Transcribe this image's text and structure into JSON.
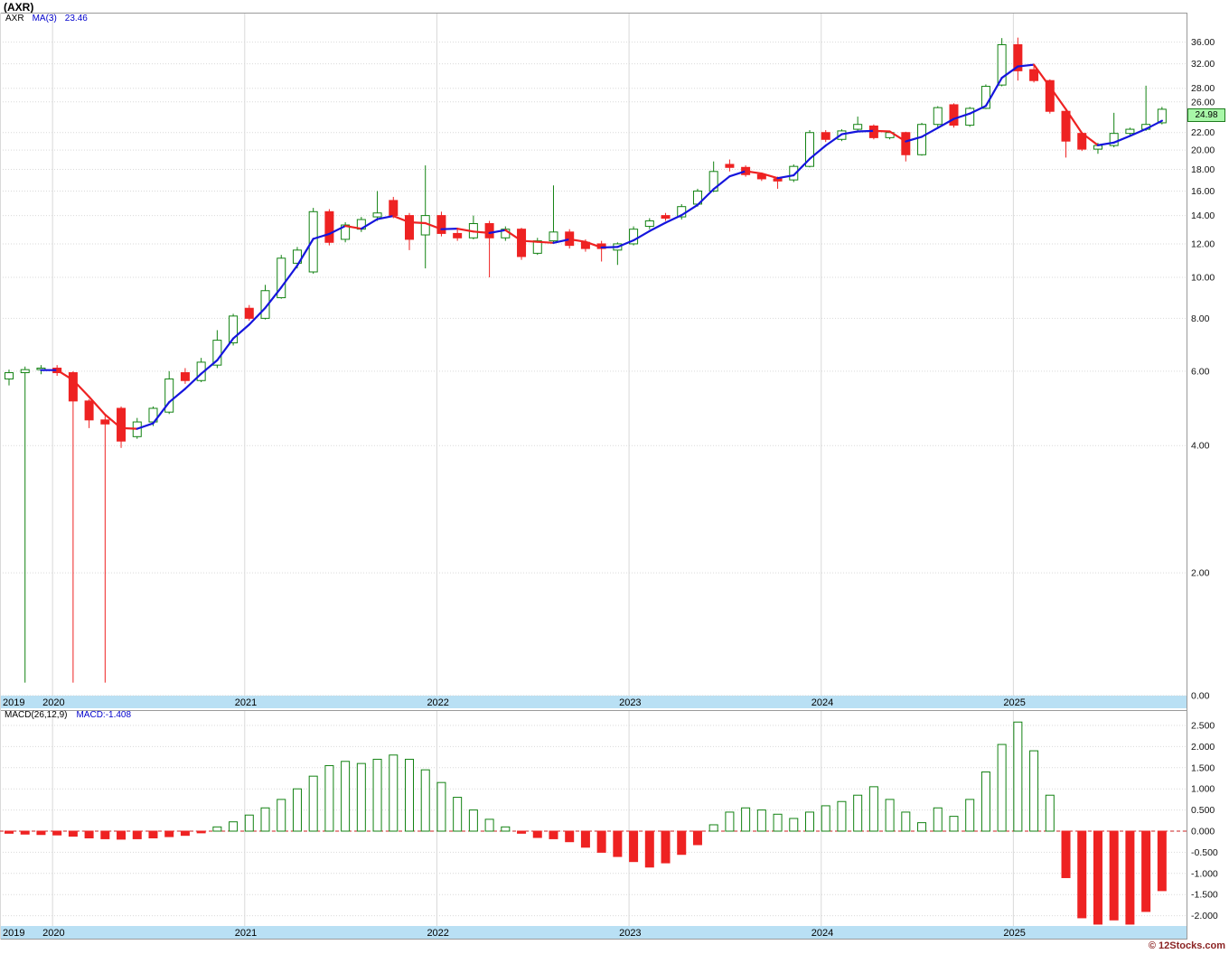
{
  "title": "(AXR)",
  "legend": {
    "symbol": "AXR",
    "ma_label": "MA(3)",
    "ma_value": "23.46"
  },
  "macd_legend": {
    "label": "MACD(26,12,9)",
    "value": "MACD:-1.408"
  },
  "price_badge": "24.98",
  "watermark": "© 12Stocks.com",
  "colors": {
    "up": "#128212",
    "down": "#ee2222",
    "ma_up": "#1515dd",
    "ma_down": "#ee2222",
    "grid": "#d9d9d9",
    "frame": "#9a9a9a",
    "strip": "#b9e0f4",
    "zero_line": "#cc2222",
    "axis_text": "#111111",
    "badge_bg": "#a8f7a8",
    "badge_border": "#1e7b1e",
    "legend_blue": "#0000cc",
    "watermark_color": "#8b2323"
  },
  "chart_data": {
    "type": "candlestick",
    "symbol": "AXR",
    "frequency": "monthly",
    "scale": "log",
    "ma_period": 3,
    "ma_last_value": 23.46,
    "last_close": 24.98,
    "macd_last_value": -1.408,
    "price_axis": {
      "ticks": [
        36,
        32,
        28,
        26,
        22,
        20,
        18,
        16,
        14,
        12,
        10,
        8,
        6,
        4,
        2,
        0
      ]
    },
    "macd_axis": {
      "ticks": [
        2.5,
        2.0,
        1.5,
        1.0,
        0.5,
        0.0,
        -0.5,
        -1.0,
        -1.5,
        -2.0
      ]
    },
    "years": [
      {
        "label": "2019",
        "i": 0
      },
      {
        "label": "2020",
        "i": 3
      },
      {
        "label": "2021",
        "i": 15
      },
      {
        "label": "2022",
        "i": 27
      },
      {
        "label": "2023",
        "i": 39
      },
      {
        "label": "2024",
        "i": 51
      },
      {
        "label": "2025",
        "i": 63
      }
    ],
    "candles": [
      [
        5.75,
        6.05,
        5.55,
        5.95
      ],
      [
        5.95,
        6.15,
        1.1,
        6.05
      ],
      [
        6.05,
        6.2,
        5.9,
        6.1
      ],
      [
        6.1,
        6.2,
        5.85,
        5.95
      ],
      [
        5.95,
        6.0,
        1.1,
        5.1
      ],
      [
        5.1,
        5.15,
        4.4,
        4.6
      ],
      [
        4.6,
        4.7,
        1.1,
        4.5
      ],
      [
        4.9,
        4.95,
        3.95,
        4.1
      ],
      [
        4.2,
        4.65,
        4.15,
        4.55
      ],
      [
        4.55,
        4.95,
        4.45,
        4.9
      ],
      [
        4.8,
        6.0,
        4.75,
        5.75
      ],
      [
        5.95,
        6.1,
        5.6,
        5.7
      ],
      [
        5.7,
        6.45,
        5.65,
        6.3
      ],
      [
        6.2,
        7.5,
        6.1,
        7.1
      ],
      [
        7.0,
        8.2,
        6.9,
        8.1
      ],
      [
        8.45,
        8.6,
        7.9,
        8.0
      ],
      [
        8.0,
        9.6,
        7.95,
        9.3
      ],
      [
        8.95,
        11.3,
        8.9,
        11.1
      ],
      [
        10.8,
        11.8,
        10.5,
        11.6
      ],
      [
        10.3,
        14.6,
        10.2,
        14.3
      ],
      [
        14.3,
        14.5,
        11.9,
        12.1
      ],
      [
        12.3,
        13.5,
        12.1,
        13.3
      ],
      [
        13.0,
        13.9,
        12.8,
        13.7
      ],
      [
        13.9,
        16.0,
        13.6,
        14.2
      ],
      [
        15.2,
        15.5,
        13.8,
        14.0
      ],
      [
        14.0,
        14.2,
        11.6,
        12.3
      ],
      [
        12.6,
        18.4,
        10.5,
        14.0
      ],
      [
        14.0,
        14.3,
        12.5,
        12.7
      ],
      [
        12.7,
        13.0,
        12.2,
        12.4
      ],
      [
        12.4,
        14.0,
        12.3,
        13.4
      ],
      [
        13.4,
        13.6,
        10.0,
        12.4
      ],
      [
        12.4,
        13.2,
        12.2,
        13.0
      ],
      [
        13.0,
        13.1,
        11.0,
        11.2
      ],
      [
        11.4,
        12.4,
        11.3,
        12.2
      ],
      [
        12.2,
        16.5,
        12.1,
        12.8
      ],
      [
        12.8,
        13.0,
        11.7,
        11.9
      ],
      [
        12.1,
        12.3,
        11.5,
        11.7
      ],
      [
        12.0,
        12.2,
        10.9,
        11.7
      ],
      [
        11.6,
        12.1,
        10.7,
        12.0
      ],
      [
        12.0,
        13.2,
        11.9,
        13.0
      ],
      [
        13.2,
        13.8,
        13.0,
        13.6
      ],
      [
        14.0,
        14.2,
        13.6,
        13.8
      ],
      [
        13.9,
        14.9,
        13.7,
        14.7
      ],
      [
        14.9,
        16.2,
        14.7,
        16.0
      ],
      [
        16.0,
        18.8,
        15.9,
        17.8
      ],
      [
        18.5,
        19.0,
        17.8,
        18.2
      ],
      [
        18.2,
        18.4,
        17.3,
        17.5
      ],
      [
        17.5,
        17.7,
        16.9,
        17.1
      ],
      [
        17.1,
        17.3,
        16.2,
        16.9
      ],
      [
        17.0,
        18.5,
        16.8,
        18.3
      ],
      [
        18.3,
        22.3,
        18.2,
        22.0
      ],
      [
        22.0,
        22.3,
        20.9,
        21.2
      ],
      [
        21.2,
        22.4,
        21.0,
        22.2
      ],
      [
        22.4,
        24.0,
        22.2,
        23.0
      ],
      [
        22.8,
        23.0,
        21.2,
        21.4
      ],
      [
        21.4,
        22.2,
        21.2,
        22.0
      ],
      [
        22.0,
        22.1,
        18.8,
        19.5
      ],
      [
        19.5,
        23.2,
        19.4,
        23.0
      ],
      [
        23.0,
        25.4,
        22.6,
        25.2
      ],
      [
        25.6,
        25.8,
        22.6,
        22.9
      ],
      [
        22.9,
        25.3,
        22.7,
        25.1
      ],
      [
        25.1,
        28.6,
        25.0,
        28.3
      ],
      [
        28.5,
        36.8,
        28.3,
        35.5
      ],
      [
        35.5,
        36.9,
        29.2,
        30.8
      ],
      [
        31.0,
        31.6,
        28.9,
        29.2
      ],
      [
        29.2,
        29.4,
        24.4,
        24.7
      ],
      [
        24.7,
        24.9,
        19.2,
        21.0
      ],
      [
        21.9,
        22.0,
        19.9,
        20.1
      ],
      [
        20.1,
        20.8,
        19.6,
        20.5
      ],
      [
        20.5,
        24.5,
        20.3,
        21.9
      ],
      [
        21.9,
        22.6,
        21.5,
        22.4
      ],
      [
        22.4,
        28.4,
        22.2,
        23.0
      ],
      [
        23.2,
        25.3,
        23.0,
        24.98
      ]
    ],
    "macd_histogram": [
      -0.05,
      -0.07,
      -0.08,
      -0.09,
      -0.12,
      -0.16,
      -0.18,
      -0.19,
      -0.18,
      -0.16,
      -0.13,
      -0.1,
      -0.04,
      0.1,
      0.22,
      0.38,
      0.55,
      0.75,
      1.0,
      1.3,
      1.55,
      1.65,
      1.6,
      1.7,
      1.8,
      1.7,
      1.45,
      1.15,
      0.8,
      0.5,
      0.28,
      0.1,
      -0.05,
      -0.15,
      -0.18,
      -0.25,
      -0.38,
      -0.5,
      -0.6,
      -0.72,
      -0.85,
      -0.75,
      -0.55,
      -0.32,
      0.15,
      0.45,
      0.55,
      0.5,
      0.4,
      0.3,
      0.45,
      0.6,
      0.7,
      0.85,
      1.05,
      0.75,
      0.45,
      0.2,
      0.55,
      0.35,
      0.75,
      1.4,
      2.05,
      2.58,
      1.9,
      0.85,
      -1.1,
      -2.05,
      -2.2,
      -2.1,
      -2.2,
      -1.9,
      -1.408
    ]
  }
}
